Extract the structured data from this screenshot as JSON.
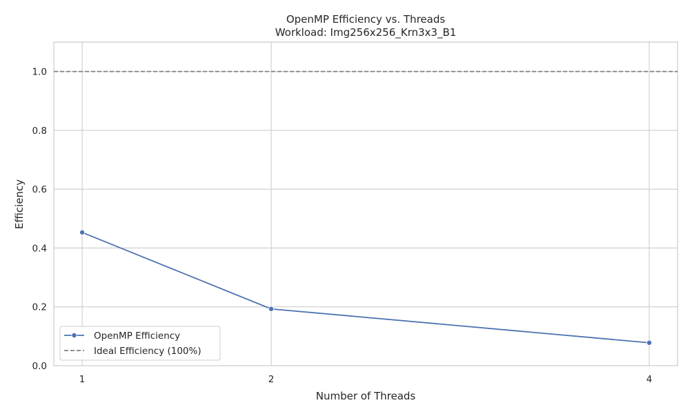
{
  "chart_data": {
    "type": "line",
    "title": "OpenMP Efficiency vs. Threads",
    "subtitle": "Workload: Img256x256_Krn3x3_B1",
    "xlabel": "Number of Threads",
    "ylabel": "Efficiency",
    "x": [
      1,
      2,
      4
    ],
    "x_tick_labels": [
      "1",
      "2",
      "4"
    ],
    "xlim": [
      0.85,
      4.15
    ],
    "ylim": [
      0,
      1.1
    ],
    "y_ticks": [
      0.0,
      0.2,
      0.4,
      0.6,
      0.8,
      1.0
    ],
    "y_tick_labels": [
      "0.0",
      "0.2",
      "0.4",
      "0.6",
      "0.8",
      "1.0"
    ],
    "grid": true,
    "legend_position": "lower-left",
    "series": [
      {
        "name": "OpenMP Efficiency",
        "values": [
          0.453,
          0.193,
          0.078
        ],
        "color": "#4c72b0",
        "style": "solid",
        "marker": "circle"
      }
    ],
    "reference_lines": [
      {
        "name": "Ideal Efficiency (100%)",
        "y": 1.0,
        "color": "#808080",
        "style": "dashed"
      }
    ]
  }
}
